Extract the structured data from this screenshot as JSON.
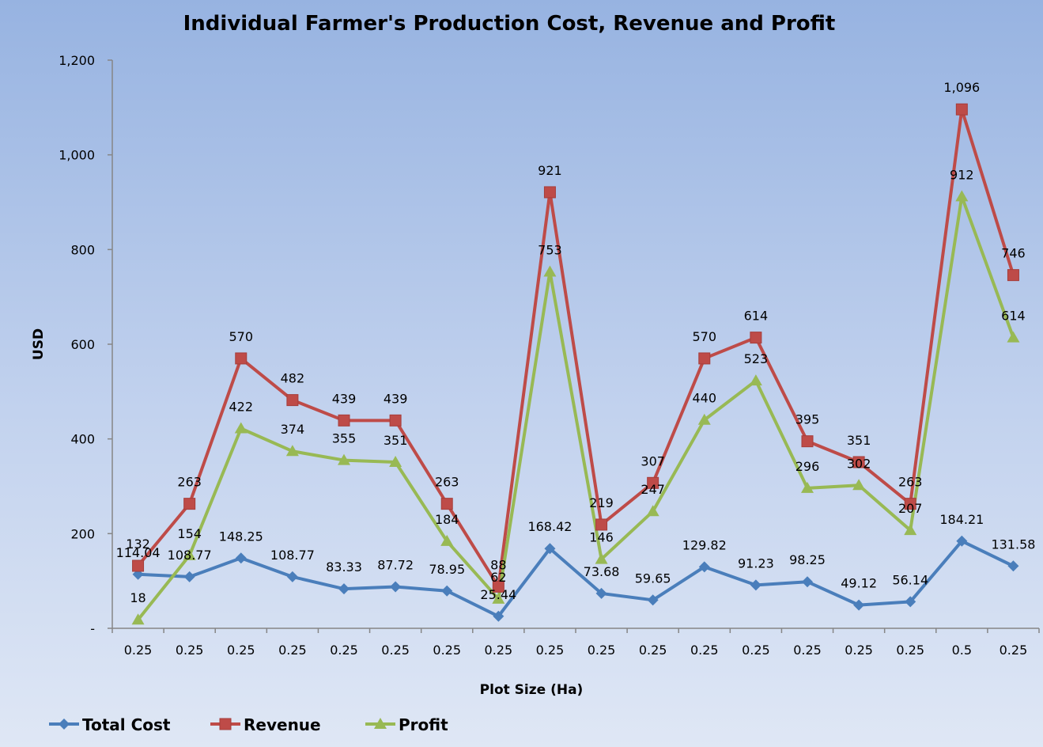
{
  "chart_data": {
    "type": "line",
    "title": "Individual Farmer's Production Cost, Revenue and Profit",
    "xlabel": "Plot Size (Ha)",
    "ylabel": "USD",
    "categories": [
      "0.25",
      "0.25",
      "0.25",
      "0.25",
      "0.25",
      "0.25",
      "0.25",
      "0.25",
      "0.25",
      "0.25",
      "0.25",
      "0.25",
      "0.25",
      "0.25",
      "0.25",
      "0.25",
      "0.5",
      "0.25"
    ],
    "ylim": [
      0,
      1200
    ],
    "yticks": [
      0,
      200,
      400,
      600,
      800,
      1000,
      1200
    ],
    "ytick_labels": [
      "-",
      "200",
      "400",
      "600",
      "800",
      "1,000",
      "1,200"
    ],
    "grid": false,
    "legend": "bottom-left",
    "series": [
      {
        "name": "Total Cost",
        "color": "#4a7ebb",
        "marker": "diamond",
        "values": [
          114.04,
          108.77,
          148.25,
          108.77,
          83.33,
          87.72,
          78.95,
          25.44,
          168.42,
          73.68,
          59.65,
          129.82,
          91.23,
          98.25,
          49.12,
          56.14,
          184.21,
          131.58
        ],
        "labels": [
          "114.04",
          "108.77",
          "148.25",
          "108.77",
          "83.33",
          "87.72",
          "78.95",
          "25.44",
          "168.42",
          "73.68",
          "59.65",
          "129.82",
          "91.23",
          "98.25",
          "49.12",
          "56.14",
          "184.21",
          "131.58"
        ]
      },
      {
        "name": "Revenue",
        "color": "#be4b48",
        "marker": "square",
        "values": [
          132,
          263,
          570,
          482,
          439,
          439,
          263,
          88,
          921,
          219,
          307,
          570,
          614,
          395,
          351,
          263,
          1096,
          746
        ],
        "labels": [
          "132",
          "263",
          "570",
          "482",
          "439",
          "439",
          "263",
          "88",
          "921",
          "219",
          "307",
          "570",
          "614",
          "395",
          "351",
          "263",
          "1,096",
          "746"
        ]
      },
      {
        "name": "Profit",
        "color": "#98b954",
        "marker": "triangle",
        "values": [
          18,
          154,
          422,
          374,
          355,
          351,
          184,
          62,
          753,
          146,
          247,
          440,
          523,
          296,
          302,
          207,
          912,
          614
        ],
        "labels": [
          "18",
          "154",
          "422",
          "374",
          "355",
          "351",
          "184",
          "62",
          "753",
          "146",
          "247",
          "440",
          "523",
          "296",
          "302",
          "207",
          "912",
          "614"
        ]
      }
    ]
  }
}
